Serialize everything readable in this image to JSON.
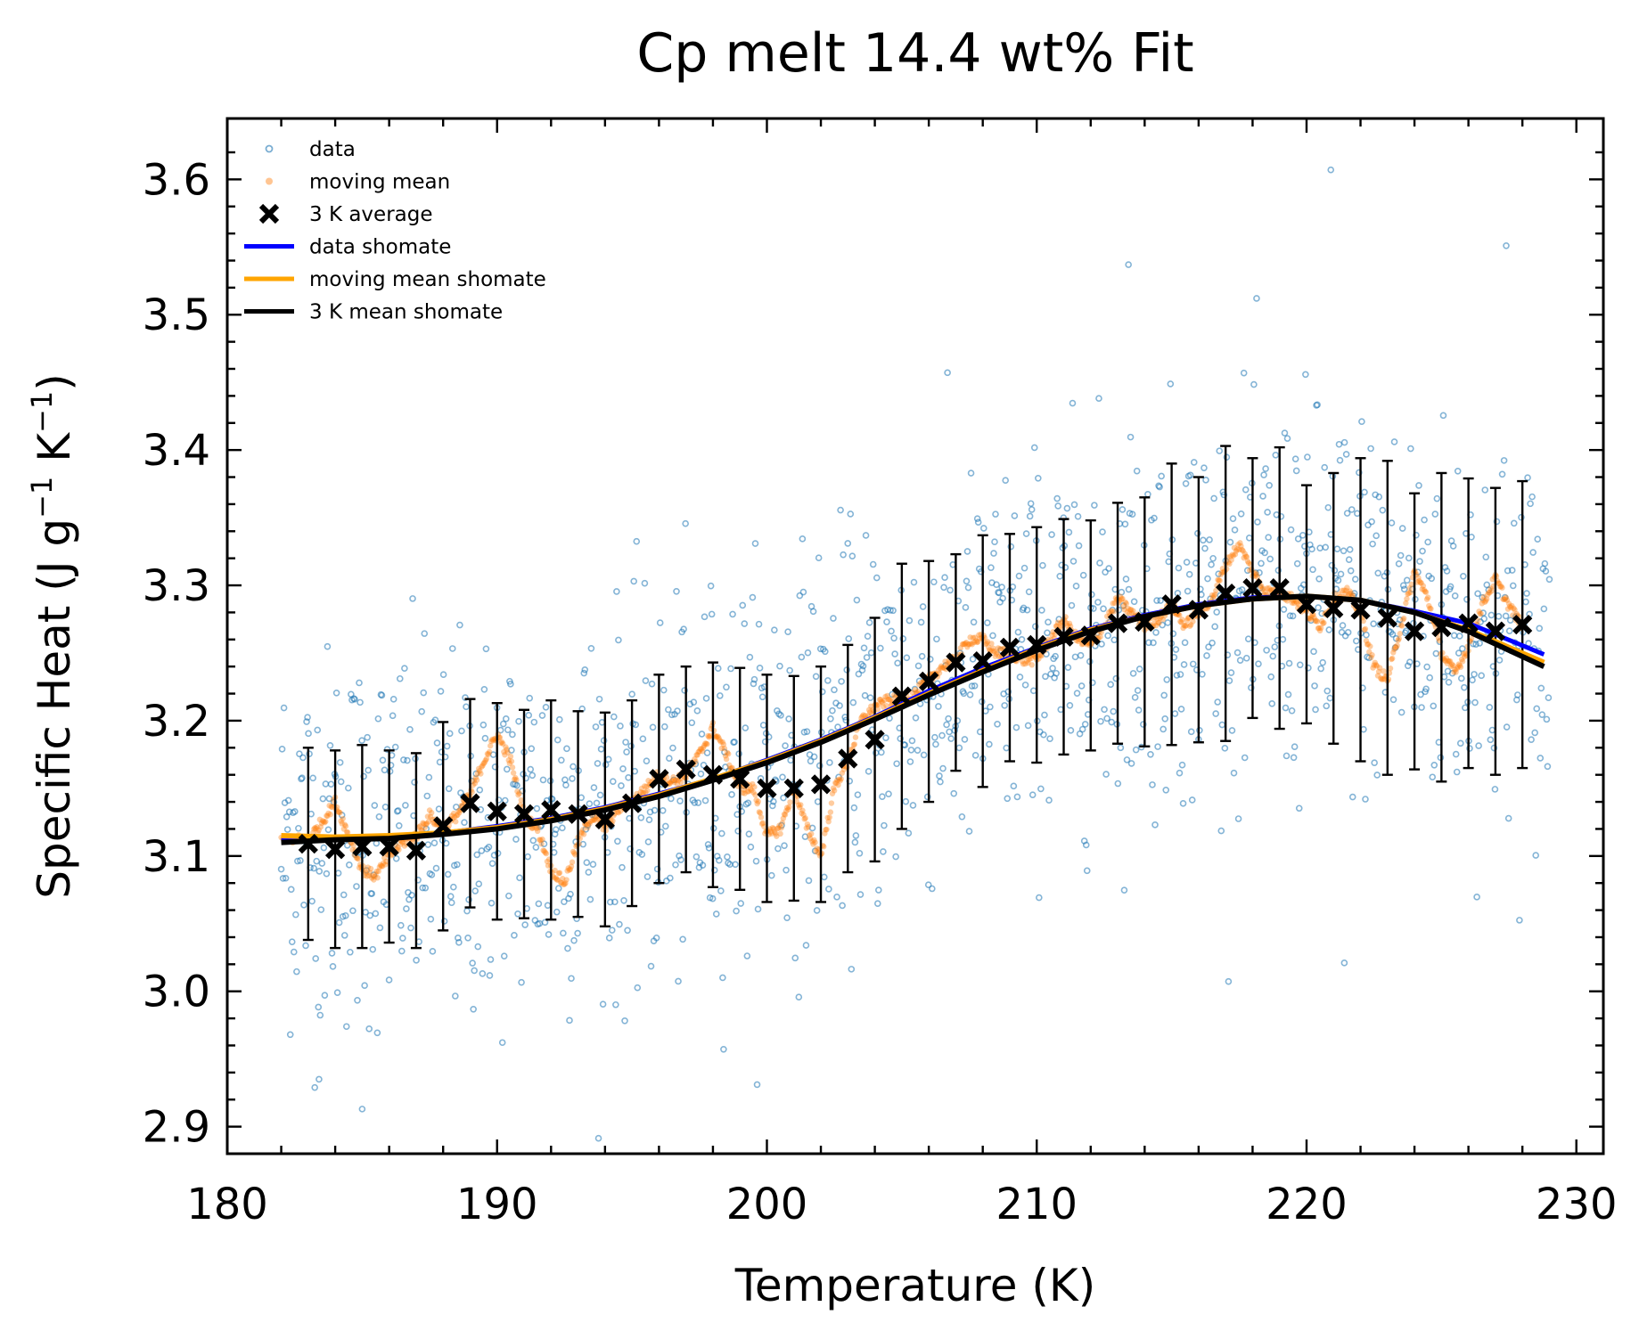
{
  "chart_data": {
    "type": "scatter",
    "title": "Cp melt 14.4 wt% Fit",
    "xlabel": "Temperature (K)",
    "ylabel_parts": [
      "Specific Heat (J g",
      "−1",
      " K",
      "−1",
      ")"
    ],
    "xlim": [
      180,
      231
    ],
    "ylim": [
      2.88,
      3.645
    ],
    "xticks": [
      180,
      190,
      200,
      210,
      220,
      230
    ],
    "xtick_labels": [
      "180",
      "190",
      "200",
      "210",
      "220",
      "230"
    ],
    "yticks": [
      2.9,
      3.0,
      3.1,
      3.2,
      3.3,
      3.4,
      3.5,
      3.6
    ],
    "ytick_labels": [
      "2.9",
      "3.0",
      "3.1",
      "3.2",
      "3.3",
      "3.4",
      "3.5",
      "3.6"
    ],
    "grid": false,
    "legend_position": "top-left",
    "legend": [
      {
        "key": "data",
        "label": "data",
        "marker": "ring",
        "color": "#1f77b4"
      },
      {
        "key": "moving_mean",
        "label": "moving mean",
        "marker": "dot",
        "color": "#ff7f0e"
      },
      {
        "key": "avg3k",
        "label": "3 K average",
        "marker": "x",
        "color": "#000000"
      },
      {
        "key": "data_fit",
        "label": "data shomate",
        "marker": "line",
        "color": "#0000ff"
      },
      {
        "key": "mm_fit",
        "label": "moving mean shomate",
        "marker": "line",
        "color": "#ffa500"
      },
      {
        "key": "avg_fit",
        "label": "3 K mean shomate",
        "marker": "line",
        "color": "#000000"
      }
    ],
    "data_series": {
      "name": "data",
      "color": "#1f77b4",
      "x_range": [
        182,
        229
      ],
      "count": 1400,
      "approx_sd": 0.07,
      "sample_points": [
        [
          220.9,
          3.607
        ],
        [
          213.4,
          3.537
        ],
        [
          185.0,
          2.913
        ],
        [
          183.4,
          2.935
        ],
        [
          221.4,
          3.021
        ],
        [
          227.4,
          3.551
        ]
      ]
    },
    "moving_mean": {
      "name": "moving mean",
      "color": "#ff7f0e",
      "x": [
        182.0,
        183.0,
        183.5,
        184.0,
        184.5,
        185.0,
        185.5,
        186.0,
        186.5,
        187.0,
        187.5,
        188.0,
        188.5,
        189.0,
        189.5,
        190.0,
        190.5,
        191.0,
        191.5,
        192.0,
        192.5,
        193.0,
        193.5,
        194.0,
        194.5,
        195.0,
        195.5,
        196.0,
        196.5,
        197.0,
        197.5,
        198.0,
        198.5,
        199.0,
        199.5,
        200.0,
        200.5,
        201.0,
        201.5,
        202.0,
        202.5,
        203.0,
        203.5,
        204.0,
        204.5,
        205.0,
        205.5,
        206.0,
        206.5,
        207.0,
        207.5,
        208.0,
        208.5,
        209.0,
        209.5,
        210.0,
        210.5,
        211.0,
        211.5,
        212.0,
        212.5,
        213.0,
        213.5,
        214.0,
        214.5,
        215.0,
        215.5,
        216.0,
        216.5,
        217.0,
        217.5,
        218.0,
        218.5,
        219.0,
        219.5,
        220.0,
        220.5,
        221.0,
        221.5,
        222.0,
        222.5,
        223.0,
        223.5,
        224.0,
        224.5,
        225.0,
        225.5,
        226.0,
        226.5,
        227.0,
        227.5,
        228.0
      ],
      "y": [
        3.113,
        3.112,
        3.125,
        3.14,
        3.115,
        3.09,
        3.085,
        3.1,
        3.11,
        3.115,
        3.13,
        3.12,
        3.13,
        3.145,
        3.17,
        3.19,
        3.17,
        3.13,
        3.12,
        3.09,
        3.08,
        3.11,
        3.13,
        3.12,
        3.135,
        3.14,
        3.15,
        3.16,
        3.155,
        3.16,
        3.175,
        3.195,
        3.175,
        3.15,
        3.15,
        3.115,
        3.12,
        3.15,
        3.12,
        3.1,
        3.15,
        3.17,
        3.2,
        3.21,
        3.215,
        3.215,
        3.22,
        3.23,
        3.24,
        3.245,
        3.26,
        3.26,
        3.25,
        3.25,
        3.245,
        3.245,
        3.26,
        3.275,
        3.26,
        3.255,
        3.27,
        3.29,
        3.28,
        3.27,
        3.275,
        3.285,
        3.27,
        3.28,
        3.29,
        3.315,
        3.33,
        3.31,
        3.295,
        3.295,
        3.29,
        3.28,
        3.27,
        3.29,
        3.295,
        3.28,
        3.24,
        3.23,
        3.27,
        3.31,
        3.29,
        3.25,
        3.235,
        3.255,
        3.285,
        3.305,
        3.285,
        3.27
      ]
    },
    "avg3k": {
      "name": "3 K average",
      "color": "#000000",
      "x": [
        183,
        184,
        185,
        186,
        187,
        188,
        189,
        190,
        191,
        192,
        193,
        194,
        195,
        196,
        197,
        198,
        199,
        200,
        201,
        202,
        203,
        204,
        205,
        206,
        207,
        208,
        209,
        210,
        211,
        212,
        213,
        214,
        215,
        216,
        217,
        218,
        219,
        220,
        221,
        222,
        223,
        224,
        225,
        226,
        227,
        228
      ],
      "y": [
        3.109,
        3.105,
        3.107,
        3.107,
        3.104,
        3.122,
        3.139,
        3.133,
        3.131,
        3.134,
        3.131,
        3.127,
        3.139,
        3.157,
        3.164,
        3.16,
        3.157,
        3.15,
        3.15,
        3.153,
        3.172,
        3.186,
        3.218,
        3.229,
        3.243,
        3.244,
        3.254,
        3.256,
        3.262,
        3.263,
        3.272,
        3.273,
        3.286,
        3.282,
        3.294,
        3.298,
        3.298,
        3.286,
        3.283,
        3.282,
        3.276,
        3.266,
        3.269,
        3.272,
        3.266,
        3.271
      ],
      "err": [
        0.071,
        0.073,
        0.075,
        0.071,
        0.072,
        0.077,
        0.077,
        0.08,
        0.077,
        0.081,
        0.076,
        0.079,
        0.076,
        0.077,
        0.076,
        0.083,
        0.082,
        0.084,
        0.083,
        0.087,
        0.084,
        0.09,
        0.098,
        0.089,
        0.08,
        0.093,
        0.084,
        0.087,
        0.087,
        0.085,
        0.089,
        0.092,
        0.104,
        0.098,
        0.109,
        0.096,
        0.104,
        0.088,
        0.1,
        0.112,
        0.116,
        0.102,
        0.114,
        0.107,
        0.106,
        0.106
      ]
    },
    "fits": [
      {
        "name": "data shomate",
        "color": "#0000ff",
        "x": [
          182.0,
          184.0,
          186.0,
          188.0,
          190.0,
          192.0,
          194.0,
          196.0,
          198.0,
          200.0,
          202.0,
          204.0,
          206.0,
          208.0,
          210.0,
          212.0,
          214.0,
          216.0,
          218.0,
          220.0,
          222.0,
          224.0,
          226.0,
          228.8
        ],
        "y": [
          3.112,
          3.113,
          3.114,
          3.117,
          3.122,
          3.128,
          3.136,
          3.146,
          3.157,
          3.171,
          3.186,
          3.203,
          3.222,
          3.239,
          3.254,
          3.268,
          3.278,
          3.286,
          3.291,
          3.292,
          3.289,
          3.281,
          3.272,
          3.249
        ]
      },
      {
        "name": "moving mean shomate",
        "color": "#ffa500",
        "x": [
          182.0,
          184.0,
          186.0,
          188.0,
          190.0,
          192.0,
          194.0,
          196.0,
          198.0,
          200.0,
          202.0,
          204.0,
          206.0,
          208.0,
          210.0,
          212.0,
          214.0,
          216.0,
          218.0,
          220.0,
          222.0,
          224.0,
          226.0,
          228.8
        ],
        "y": [
          3.115,
          3.114,
          3.115,
          3.117,
          3.121,
          3.127,
          3.135,
          3.145,
          3.157,
          3.17,
          3.185,
          3.202,
          3.22,
          3.237,
          3.253,
          3.267,
          3.277,
          3.285,
          3.29,
          3.292,
          3.289,
          3.28,
          3.267,
          3.243
        ]
      },
      {
        "name": "3 K mean shomate",
        "color": "#000000",
        "x": [
          182.0,
          184.0,
          186.0,
          188.0,
          190.0,
          192.0,
          194.0,
          196.0,
          198.0,
          200.0,
          202.0,
          204.0,
          206.0,
          208.0,
          210.0,
          212.0,
          214.0,
          216.0,
          218.0,
          220.0,
          222.0,
          224.0,
          226.0,
          228.8
        ],
        "y": [
          3.11,
          3.112,
          3.113,
          3.116,
          3.12,
          3.126,
          3.134,
          3.144,
          3.156,
          3.169,
          3.184,
          3.201,
          3.219,
          3.236,
          3.252,
          3.266,
          3.277,
          3.285,
          3.29,
          3.292,
          3.289,
          3.28,
          3.266,
          3.24
        ]
      }
    ]
  }
}
